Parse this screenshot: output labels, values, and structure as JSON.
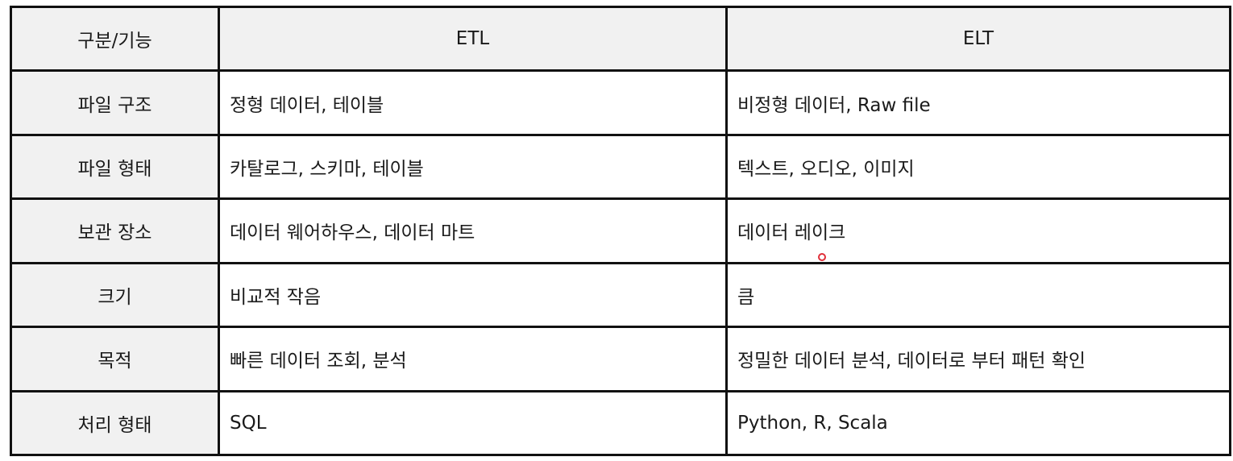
{
  "header": {
    "category": "구분/기능",
    "etl": "ETL",
    "elt": "ELT"
  },
  "rows": [
    {
      "label": "파일 구조",
      "etl": "정형 데이터, 테이블",
      "elt": "비정형 데이터, Raw file"
    },
    {
      "label": "파일 형태",
      "etl": "카탈로그, 스키마, 테이블",
      "elt": "텍스트, 오디오, 이미지"
    },
    {
      "label": "보관 장소",
      "etl": "데이터 웨어하우스, 데이터 마트",
      "elt": "데이터 레이크"
    },
    {
      "label": "크기",
      "etl": "비교적 작음",
      "elt": "큼"
    },
    {
      "label": "목적",
      "etl": "빠른 데이터 조회, 분석",
      "elt": "정밀한 데이터 분석, 데이터로 부터 패턴 확인"
    },
    {
      "label": "처리 형태",
      "etl": "SQL",
      "elt": "Python, R, Scala"
    }
  ],
  "colors": {
    "border": "#111111",
    "label_bg": "#f1f1f1",
    "cursor": "#e0303a"
  }
}
